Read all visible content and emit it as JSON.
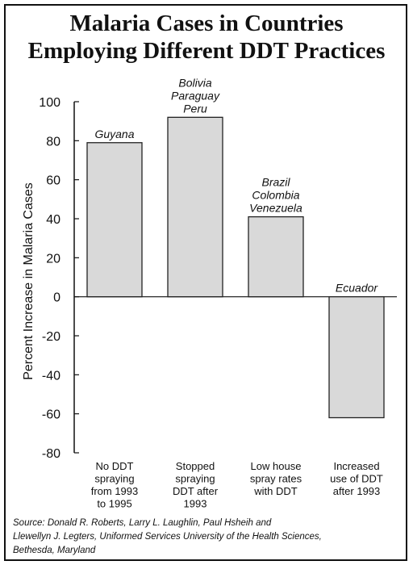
{
  "chart_data": {
    "type": "bar",
    "title": [
      "Malaria Cases in Countries",
      "Employing Different DDT Practices"
    ],
    "ylabel": "Percent Increase in Malaria Cases",
    "ylim": [
      -80,
      100
    ],
    "yticks": [
      100,
      80,
      60,
      40,
      20,
      0,
      -20,
      -40,
      -60,
      -80
    ],
    "categories": [
      [
        "No DDT",
        "spraying",
        "from 1993",
        "to 1995"
      ],
      [
        "Stopped",
        "spraying",
        "DDT after",
        "1993"
      ],
      [
        "Low house",
        "spray rates",
        "with DDT"
      ],
      [
        "Increased",
        "use of DDT",
        "after 1993"
      ]
    ],
    "values": [
      79,
      92,
      41,
      -62
    ],
    "bar_labels": [
      [
        "Guyana"
      ],
      [
        "Bolivia",
        "Paraguay",
        "Peru"
      ],
      [
        "Brazil",
        "Colombia",
        "Venezuela"
      ],
      [
        "Ecuador"
      ]
    ],
    "grid": false,
    "bar_color": "#d9d9d9"
  },
  "source": [
    "Source: Donald R. Roberts, Larry L. Laughlin, Paul Hsheih and",
    "Llewellyn J. Legters, Uniformed Services University of the Health Sciences,",
    "Bethesda, Maryland"
  ]
}
